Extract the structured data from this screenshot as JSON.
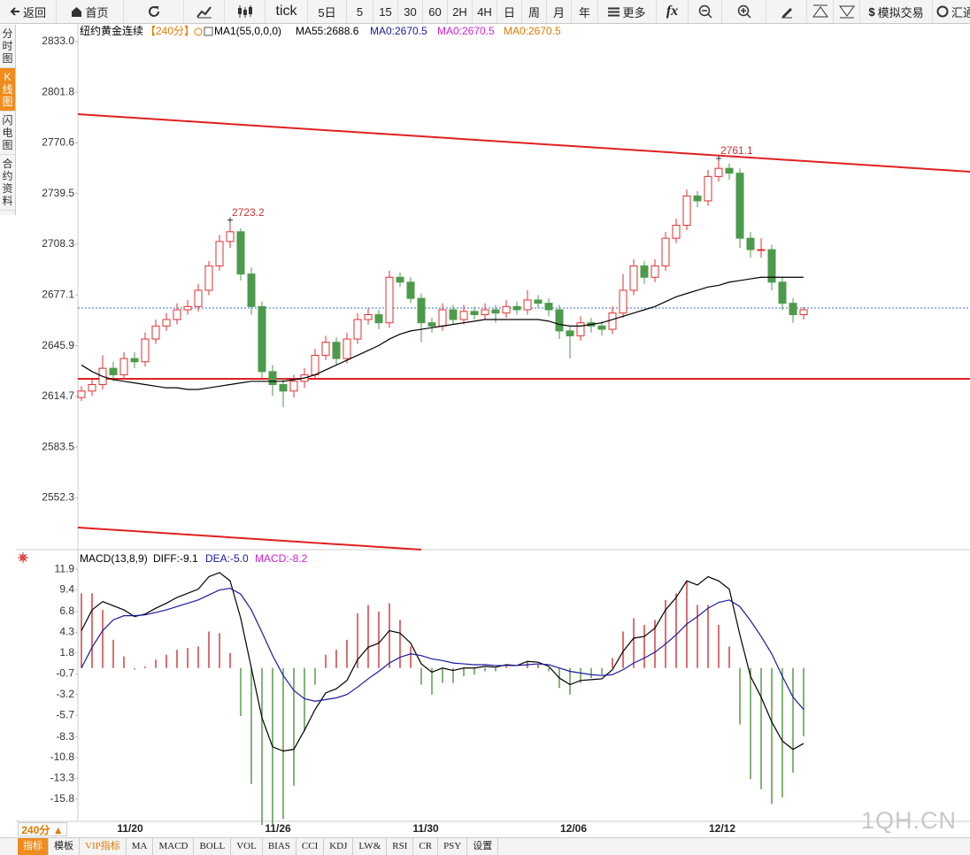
{
  "toolbar": {
    "items": [
      "返回",
      "首页",
      "tick",
      "5日",
      "5",
      "15",
      "30",
      "60",
      "2H",
      "4H",
      "日",
      "周",
      "月",
      "年",
      "更多",
      "fx",
      "$",
      "模拟交易",
      "汇通"
    ]
  },
  "sidebar": {
    "items": [
      "分时图",
      "K线图",
      "闪电图",
      "合约资料"
    ],
    "active": 1
  },
  "kline": {
    "type": "candlestick",
    "legend": {
      "symbol": "纽约黄金连续",
      "period": "【240分】",
      "indicator": "MA1(55,0,0,0)",
      "ma55": "MA55:2688.6",
      "ma0": [
        "MA0:2670.5",
        "MA0:2670.5",
        "MA0:2670.5"
      ]
    },
    "ylim": [
      2521,
      2843.3
    ],
    "yticks": [
      {
        "value": 2833,
        "label": "2833.0"
      },
      2801.8,
      2770.6,
      2739.5,
      2708.3,
      2677.1,
      2645.9,
      2614.7,
      2583.5,
      2552.3
    ],
    "up_color": "#e03030",
    "down_color": "#4c9a4c",
    "ma_color": "#000000",
    "annotations": [
      "2723.2",
      "2761.1"
    ],
    "candles": [
      [
        2614,
        2621,
        2612,
        2618
      ],
      [
        2618,
        2625,
        2615,
        2622
      ],
      [
        2622,
        2640,
        2619,
        2632
      ],
      [
        2632,
        2636,
        2624,
        2628
      ],
      [
        2628,
        2642,
        2625,
        2638
      ],
      [
        2638,
        2642,
        2632,
        2636
      ],
      [
        2636,
        2654,
        2633,
        2650
      ],
      [
        2650,
        2662,
        2647,
        2658
      ],
      [
        2658,
        2666,
        2655,
        2662
      ],
      [
        2662,
        2672,
        2659,
        2668
      ],
      [
        2668,
        2674,
        2665,
        2670
      ],
      [
        2670,
        2684,
        2667,
        2680
      ],
      [
        2680,
        2698,
        2677,
        2695
      ],
      [
        2695,
        2714,
        2692,
        2710
      ],
      [
        2710,
        2723.2,
        2706,
        2716
      ],
      [
        2716,
        2718,
        2686,
        2690
      ],
      [
        2690,
        2694,
        2665,
        2670
      ],
      [
        2670,
        2673,
        2626,
        2630
      ],
      [
        2630,
        2634,
        2615,
        2622
      ],
      [
        2622,
        2626,
        2608,
        2618
      ],
      [
        2618,
        2628,
        2614,
        2624
      ],
      [
        2624,
        2632,
        2620,
        2628
      ],
      [
        2628,
        2644,
        2625,
        2640
      ],
      [
        2640,
        2652,
        2637,
        2648
      ],
      [
        2648,
        2651,
        2634,
        2638
      ],
      [
        2638,
        2654,
        2635,
        2650
      ],
      [
        2650,
        2666,
        2647,
        2662
      ],
      [
        2662,
        2669,
        2659,
        2665
      ],
      [
        2665,
        2668,
        2656,
        2660
      ],
      [
        2660,
        2692,
        2657,
        2688
      ],
      [
        2688,
        2691,
        2682,
        2685
      ],
      [
        2685,
        2688,
        2672,
        2675
      ],
      [
        2675,
        2678,
        2648,
        2660
      ],
      [
        2660,
        2663,
        2654,
        2658
      ],
      [
        2658,
        2672,
        2655,
        2668
      ],
      [
        2668,
        2671,
        2659,
        2662
      ],
      [
        2662,
        2671,
        2659,
        2667
      ],
      [
        2667,
        2670,
        2662,
        2665
      ],
      [
        2665,
        2672,
        2662,
        2668
      ],
      [
        2668,
        2671,
        2660,
        2666
      ],
      [
        2666,
        2674,
        2663,
        2670
      ],
      [
        2670,
        2673,
        2665,
        2668
      ],
      [
        2668,
        2680,
        2665,
        2674
      ],
      [
        2674,
        2677,
        2669,
        2672
      ],
      [
        2672,
        2675,
        2664,
        2668
      ],
      [
        2668,
        2671,
        2650,
        2655
      ],
      [
        2655,
        2658,
        2638,
        2652
      ],
      [
        2652,
        2664,
        2649,
        2660
      ],
      [
        2660,
        2663,
        2654,
        2658
      ],
      [
        2658,
        2661,
        2652,
        2656
      ],
      [
        2656,
        2670,
        2653,
        2666
      ],
      [
        2666,
        2690,
        2663,
        2680
      ],
      [
        2680,
        2699,
        2677,
        2695
      ],
      [
        2695,
        2698,
        2684,
        2688
      ],
      [
        2688,
        2699,
        2685,
        2695
      ],
      [
        2695,
        2716,
        2692,
        2712
      ],
      [
        2712,
        2724,
        2709,
        2720
      ],
      [
        2720,
        2742,
        2717,
        2738
      ],
      [
        2738,
        2741,
        2731,
        2735
      ],
      [
        2735,
        2754,
        2732,
        2750
      ],
      [
        2750,
        2761.1,
        2747,
        2755
      ],
      [
        2755,
        2758,
        2748,
        2752
      ],
      [
        2752,
        2755,
        2706,
        2712
      ],
      [
        2712,
        2716,
        2700,
        2705
      ],
      [
        2705,
        2712,
        2700,
        2705
      ],
      [
        2705,
        2708,
        2680,
        2685
      ],
      [
        2685,
        2688,
        2668,
        2672
      ],
      [
        2672,
        2675,
        2660,
        2665
      ],
      [
        2665,
        2670,
        2662,
        2668
      ]
    ],
    "ma55": [
      2634,
      2630,
      2627,
      2625,
      2624,
      2623,
      2622,
      2621,
      2620,
      2620,
      2619,
      2619,
      2620,
      2621,
      2622,
      2623,
      2624,
      2624,
      2624,
      2624,
      2625,
      2626,
      2628,
      2631,
      2634,
      2637,
      2640,
      2643,
      2646,
      2650,
      2653,
      2655,
      2656,
      2657,
      2658,
      2659,
      2660,
      2661,
      2662,
      2662,
      2662,
      2662,
      2662,
      2662,
      2661,
      2659,
      2658,
      2658,
      2659,
      2660,
      2662,
      2664,
      2666,
      2668,
      2670,
      2673,
      2676,
      2678,
      2680,
      2682,
      2683,
      2685,
      2686,
      2687,
      2688,
      2688,
      2688,
      2688,
      2688
    ]
  },
  "macd": {
    "type": "macd",
    "legend": {
      "name": "MACD(13,8,9)",
      "diff": "DIFF:-9.1",
      "dea": "DEA:-5.0",
      "macd": "MACD:-8.2"
    },
    "ylim": [
      -18.9,
      13.3
    ],
    "yticks": [
      11.9,
      9.4,
      6.8,
      4.3,
      1.8,
      -0.7,
      -3.2,
      -5.7,
      -8.3,
      -10.8,
      -13.3,
      -15.8
    ],
    "diff_color": "#000000",
    "dea_color": "#1a1aa0",
    "pos_color": "#d04040",
    "neg_color": "#5a9a4a",
    "diff": [
      4.5,
      7,
      8,
      7.5,
      7,
      6.2,
      6.5,
      7.2,
      7.8,
      8.5,
      9,
      9.5,
      11,
      11.5,
      10.5,
      6,
      0,
      -6,
      -9.5,
      -10,
      -9.8,
      -7.5,
      -5,
      -3,
      -2.5,
      -1.5,
      1,
      2.5,
      3,
      4.5,
      4.2,
      3,
      0.5,
      -0.5,
      0,
      -0.3,
      0,
      0,
      0.2,
      0.1,
      0.4,
      0.3,
      0.8,
      0.7,
      0.2,
      -1.2,
      -2,
      -1.5,
      -1.4,
      -1.3,
      -0.2,
      2,
      3.6,
      3.8,
      4.8,
      7,
      8.5,
      10.5,
      10,
      11,
      10.5,
      9.5,
      4,
      -1,
      -3.5,
      -6.5,
      -8.8,
      -9.8,
      -9.1
    ],
    "dea": [
      0,
      2.5,
      4.5,
      5.8,
      6.3,
      6.3,
      6.4,
      6.7,
      7,
      7.4,
      7.8,
      8.2,
      8.8,
      9.4,
      9.6,
      8.9,
      7,
      4.3,
      1.5,
      -0.9,
      -2.7,
      -3.7,
      -4,
      -3.8,
      -3.6,
      -3.2,
      -2.3,
      -1.3,
      -0.4,
      0.6,
      1.3,
      1.7,
      1.5,
      1.1,
      0.9,
      0.6,
      0.5,
      0.4,
      0.4,
      0.3,
      0.3,
      0.3,
      0.4,
      0.5,
      0.4,
      0,
      -0.4,
      -0.6,
      -0.8,
      -0.9,
      -0.8,
      -0.2,
      0.6,
      1.2,
      1.9,
      2.9,
      4,
      5.3,
      6.2,
      7.2,
      7.9,
      8.2,
      7.4,
      5.7,
      3.8,
      1.7,
      -1,
      -3.5,
      -5.0
    ],
    "hist": [
      9,
      9,
      7,
      3.4,
      1.4,
      -0.2,
      0.2,
      1,
      1.6,
      2.2,
      2.4,
      2.6,
      4.4,
      4.2,
      1.8,
      -5.8,
      -14,
      -20.6,
      -22,
      -18.2,
      -14.2,
      -7.6,
      -2,
      1.6,
      2.2,
      3.4,
      6.6,
      7.6,
      6.8,
      7.8,
      5.8,
      2.6,
      -2,
      -3.2,
      -1.8,
      -1.8,
      -1,
      -0.8,
      -0.4,
      -0.4,
      0.2,
      0,
      0.8,
      0.4,
      -0.4,
      -2.4,
      -3.2,
      -1.8,
      -1.2,
      -0.8,
      1.2,
      4.4,
      6,
      5.2,
      5.8,
      8.2,
      9,
      10.4,
      7.6,
      7.6,
      5.2,
      2.6,
      -6.8,
      -13.4,
      -14.6,
      -16.4,
      -15.6,
      -12.6,
      -8.2
    ]
  },
  "x_labels": [
    "11/20",
    "11/26",
    "11/30",
    "12/06",
    "12/12"
  ],
  "period_selector": "240分 ▲",
  "tabs": [
    "指标",
    "模板",
    "VIP指标",
    "MA",
    "MACD",
    "BOLL",
    "VOL",
    "BIAS",
    "CCI",
    "KDJ",
    "LW&",
    "RSI",
    "CR",
    "PSY",
    "设置"
  ],
  "watermark": "1QH.CN"
}
